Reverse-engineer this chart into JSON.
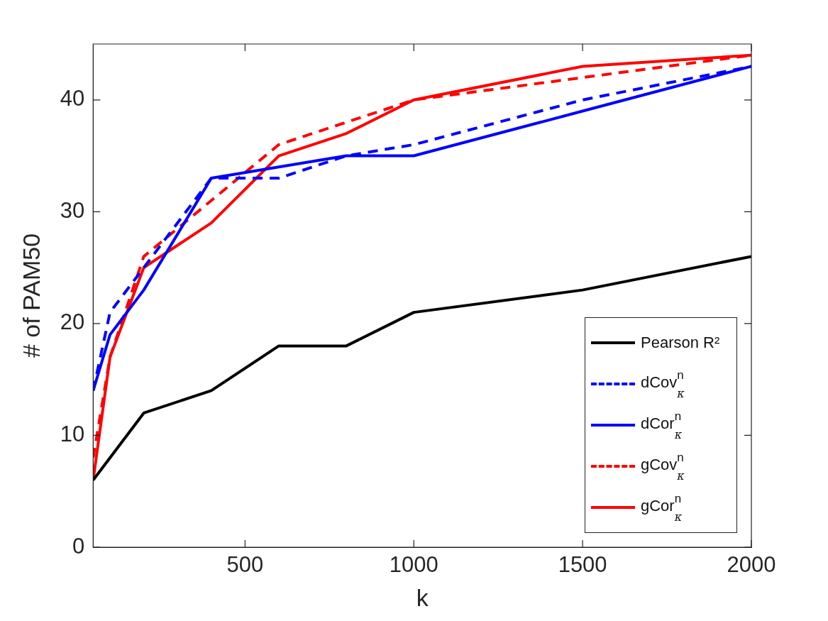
{
  "chart_data": {
    "type": "line",
    "xlabel": "k",
    "ylabel": "# of PAM50",
    "x": [
      50,
      100,
      200,
      400,
      600,
      800,
      1000,
      1500,
      2000
    ],
    "xlim": [
      50,
      2000
    ],
    "xticks": [
      500,
      1000,
      1500,
      2000
    ],
    "ylim": [
      0,
      45
    ],
    "yticks": [
      0,
      10,
      20,
      30,
      40
    ],
    "grid": false,
    "legend": "bottom right",
    "marker": "none",
    "series": [
      {
        "name": "Pearson R²",
        "color": "#000000",
        "line_style": "solid",
        "values": [
          6,
          8,
          12,
          14,
          18,
          18,
          21,
          23,
          26
        ]
      },
      {
        "name": "dCov$^{n}$$_{κ}$",
        "color": "#0000ff",
        "line_style": "dashed",
        "values": [
          14,
          21,
          25,
          33,
          33,
          35,
          36,
          40,
          43
        ]
      },
      {
        "name": "dCor$^{n}$$_{κ}$",
        "color": "#0000ff",
        "line_style": "solid",
        "values": [
          14,
          19,
          23,
          33,
          34,
          35,
          35,
          39,
          43
        ]
      },
      {
        "name": "gCov$^{n}$$_{κ}$",
        "color": "#ff0000",
        "line_style": "dashed",
        "values": [
          8,
          17,
          26,
          31,
          36,
          38,
          40,
          42,
          44
        ]
      },
      {
        "name": "gCor$^{n}$$_{κ}$",
        "color": "#ff0000",
        "line_style": "solid",
        "values": [
          6,
          17,
          25,
          29,
          35,
          37,
          40,
          43,
          44
        ]
      }
    ]
  }
}
